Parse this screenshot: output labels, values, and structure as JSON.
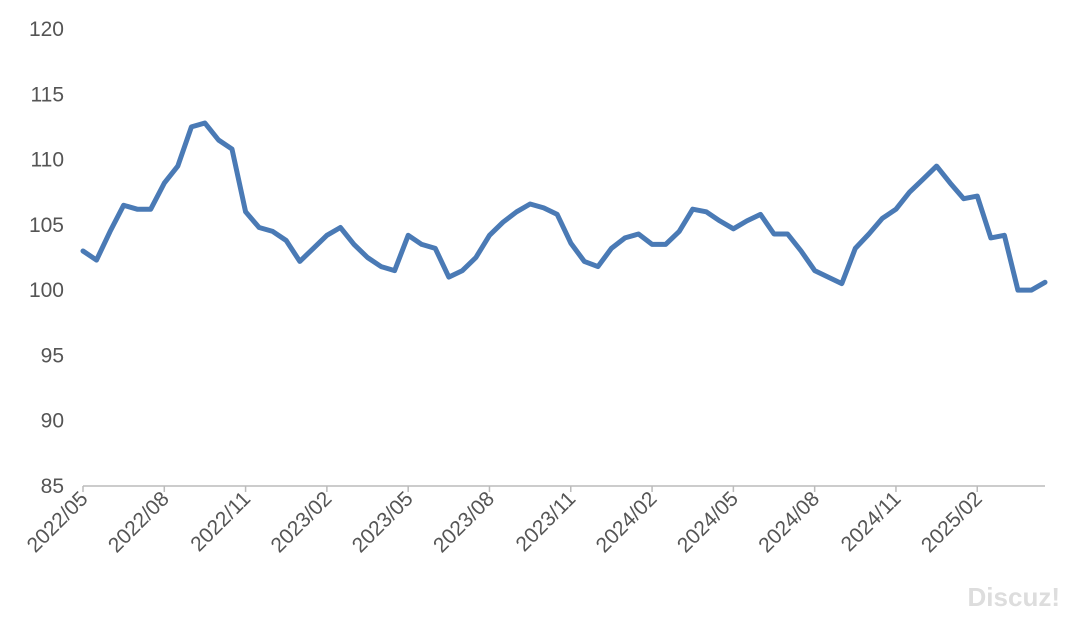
{
  "chart_data": {
    "type": "line",
    "categories": [
      "2022/05",
      null,
      null,
      null,
      null,
      null,
      "2022/08",
      null,
      null,
      null,
      null,
      null,
      "2022/11",
      null,
      null,
      null,
      null,
      null,
      "2023/02",
      null,
      null,
      null,
      null,
      null,
      "2023/05",
      null,
      null,
      null,
      null,
      null,
      "2023/08",
      null,
      null,
      null,
      null,
      null,
      "2023/11",
      null,
      null,
      null,
      null,
      null,
      "2024/02",
      null,
      null,
      null,
      null,
      null,
      "2024/05",
      null,
      null,
      null,
      null,
      null,
      "2024/08",
      null,
      null,
      null,
      null,
      null,
      "2024/11",
      null,
      null,
      null,
      null,
      null,
      "2025/02",
      null,
      null,
      null,
      null,
      null
    ],
    "series": [
      {
        "name": null,
        "color": "#4a7ab5",
        "values": [
          103,
          102.3,
          104.5,
          106.5,
          106.2,
          106.2,
          108.2,
          109.5,
          112.5,
          112.8,
          111.5,
          110.8,
          106,
          104.8,
          104.5,
          103.8,
          102.2,
          103.2,
          104.2,
          104.8,
          103.5,
          102.5,
          101.8,
          101.5,
          104.2,
          103.5,
          103.2,
          101,
          101.5,
          102.5,
          104.2,
          105.2,
          106,
          106.6,
          106.3,
          105.8,
          103.6,
          102.2,
          101.8,
          103.2,
          104,
          104.3,
          103.5,
          103.5,
          104.5,
          106.2,
          106,
          105.3,
          104.7,
          105.3,
          105.8,
          104.3,
          104.3,
          103,
          101.5,
          101,
          100.5,
          103.2,
          104.3,
          105.5,
          106.2,
          107.5,
          108.5,
          109.5,
          108.2,
          107,
          107.2,
          104,
          104.2,
          100,
          100,
          100.6
        ]
      }
    ],
    "ylim": [
      85,
      120
    ],
    "yticks": [
      85,
      90,
      95,
      100,
      105,
      110,
      115,
      120
    ],
    "grid": false,
    "watermark": "Discuz!"
  }
}
